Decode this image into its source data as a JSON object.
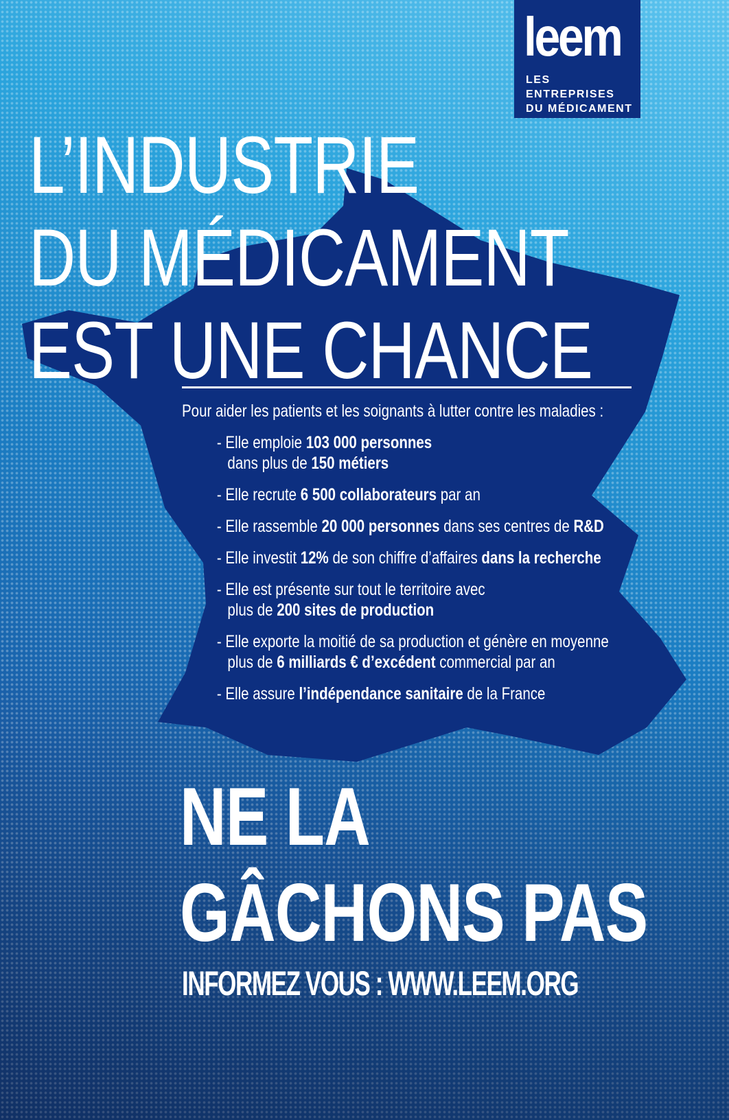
{
  "colors": {
    "map": "#0d2f80",
    "background_light": "#2aa3dc",
    "background_dark": "#163f7e"
  },
  "logo": {
    "word": "leem",
    "tagline_1": "LES ENTREPRISES",
    "tagline_2": "DU MÉDICAMENT"
  },
  "title": {
    "line1": "L’INDUSTRIE",
    "line2": "DU MÉDICAMENT",
    "line3a": "EST ",
    "line3b": "UNE CHANCE"
  },
  "intro": "Pour aider les patients et les soignants à lutter contre les maladies :",
  "items": [
    {
      "a": "- Elle emploie ",
      "b": "103 000 personnes",
      "c": "dans plus de ",
      "d": "150 métiers"
    },
    {
      "a": "- Elle recrute ",
      "b": "6 500 collaborateurs",
      "c": " par an"
    },
    {
      "a": "- Elle rassemble ",
      "b": "20 000 personnes",
      "c": " dans ses centres de ",
      "d": "R&D"
    },
    {
      "a": "- Elle investit ",
      "b": "12%",
      "c": " de son chiffre d’affaires ",
      "d": "dans la recherche"
    },
    {
      "a": "- Elle est présente sur tout le territoire avec",
      "b": "plus de ",
      "c": "200 sites de production"
    },
    {
      "a": "- Elle exporte la moitié de sa production et génère en moyenne",
      "b": "plus de ",
      "c": "6 milliards € d’excédent",
      "d": " commercial par an"
    },
    {
      "a": "- Elle assure ",
      "b": "l’indépendance sanitaire",
      "c": " de la France"
    }
  ],
  "slogan": {
    "line1": "NE LA",
    "line2": "GÂCHONS PAS"
  },
  "cta": "INFORMEZ VOUS : WWW.LEEM.ORG"
}
